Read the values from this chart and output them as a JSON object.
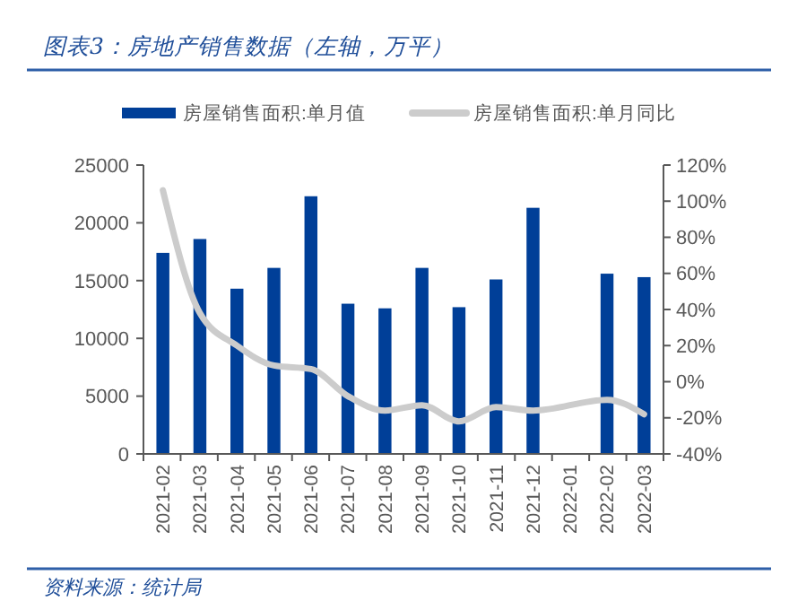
{
  "chart_data": {
    "type": "bar",
    "title": "图表3：房地产销售数据（左轴，万平）",
    "categories": [
      "2021-02",
      "2021-03",
      "2021-04",
      "2021-05",
      "2021-06",
      "2021-07",
      "2021-08",
      "2021-09",
      "2021-10",
      "2021-11",
      "2021-12",
      "2022-01",
      "2022-02",
      "2022-03"
    ],
    "series": [
      {
        "name": "房屋销售面积:单月值",
        "color": "#003f98",
        "values": [
          17400,
          18600,
          14300,
          16100,
          22300,
          13000,
          12600,
          16100,
          12700,
          15100,
          21300,
          null,
          15600,
          15300
        ]
      },
      {
        "name": "房屋销售面积:单月同比",
        "type": "line",
        "axis": "y2",
        "color": "#cccccc",
        "values": [
          106,
          38,
          20,
          9,
          7,
          -8,
          -16,
          -13,
          -22,
          -14,
          -16,
          null,
          -10,
          -18
        ]
      }
    ],
    "ylim": [
      0,
      25000
    ],
    "yticks": [
      0,
      5000,
      10000,
      15000,
      20000,
      25000
    ],
    "y2lim": [
      -40,
      120
    ],
    "y2ticks": [
      {
        "value": -40,
        "label": "-40%"
      },
      {
        "value": -20,
        "label": "-20%"
      },
      {
        "value": 0,
        "label": "0%"
      },
      {
        "value": 20,
        "label": "20%"
      },
      {
        "value": 40,
        "label": "40%"
      },
      {
        "value": 60,
        "label": "60%"
      },
      {
        "value": 80,
        "label": "80%"
      },
      {
        "value": 100,
        "label": "100%"
      },
      {
        "value": 120,
        "label": "120%"
      }
    ],
    "legend": "top",
    "grid": false,
    "annotations": [
      "资料来源：统计局"
    ]
  }
}
